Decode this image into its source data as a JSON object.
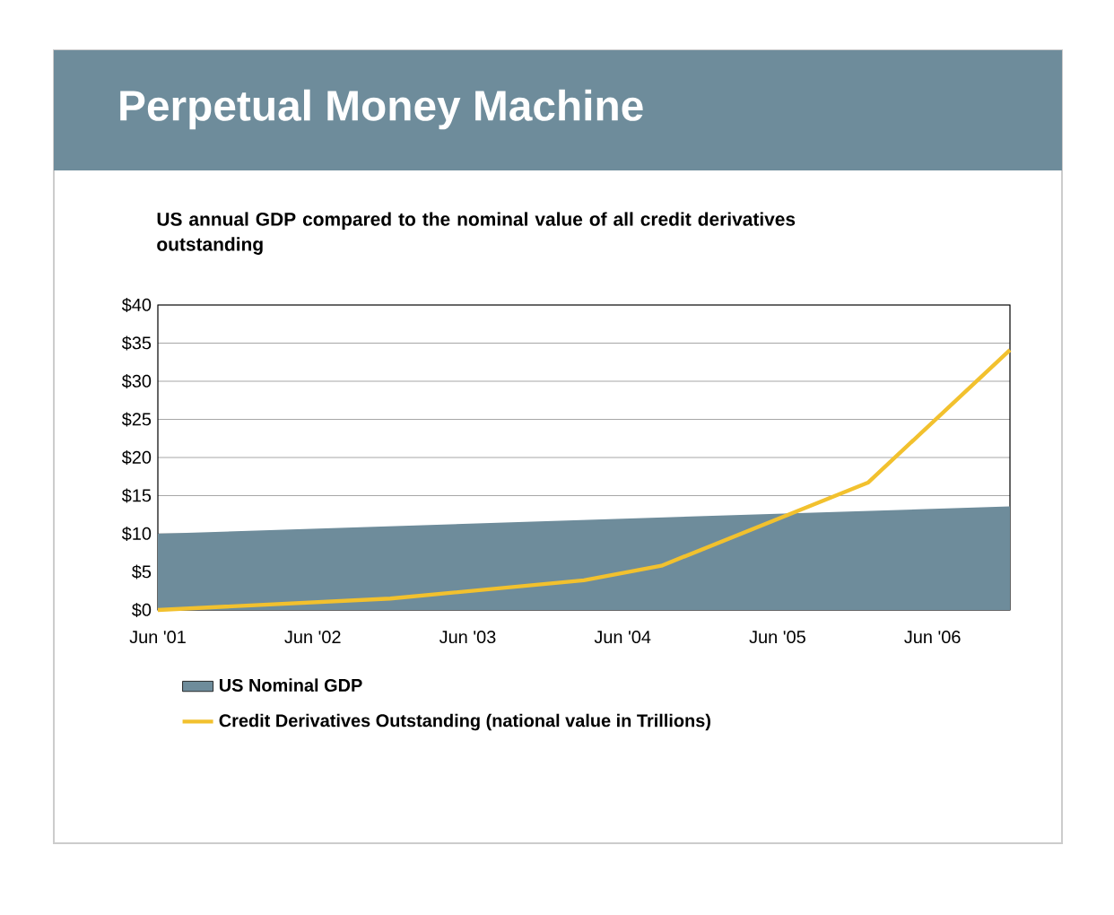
{
  "chart_data": {
    "type": "line",
    "title": "Perpetual Money Machine",
    "subtitle": "US annual GDP compared to the nominal value of all credit derivatives outstanding",
    "x": [
      "2001-06",
      "2006-12"
    ],
    "series": [
      {
        "name": "US Nominal GDP",
        "type": "area",
        "color": "#6e8c9b",
        "values": [
          10,
          13.6
        ]
      },
      {
        "name": "Credit Derivatives Outstanding (national value in Trillions)",
        "color": "#f2c12e",
        "x": [
          "2001-06",
          "2002-12",
          "2004-03",
          "2004-09",
          "2006-01",
          "2006-12"
        ],
        "values": [
          0,
          1.5,
          3.9,
          5.8,
          16.7,
          34.1
        ]
      }
    ],
    "xlim": [
      "2001-06",
      "2006-12"
    ],
    "xticks": [
      {
        "value": "2001-06",
        "label": "Jun '01"
      },
      {
        "value": "2002-06",
        "label": "Jun '02"
      },
      {
        "value": "2003-06",
        "label": "Jun '03"
      },
      {
        "value": "2004-06",
        "label": "Jun '04"
      },
      {
        "value": "2005-06",
        "label": "Jun '05"
      },
      {
        "value": "2006-06",
        "label": "Jun '06"
      }
    ],
    "ylim": [
      0,
      40
    ],
    "yticks": [
      {
        "value": 0,
        "label": "$0"
      },
      {
        "value": 5,
        "label": "$5"
      },
      {
        "value": 10,
        "label": "$10"
      },
      {
        "value": 15,
        "label": "$15"
      },
      {
        "value": 20,
        "label": "$20"
      },
      {
        "value": 25,
        "label": "$25"
      },
      {
        "value": 30,
        "label": "$30"
      },
      {
        "value": 35,
        "label": "$35"
      },
      {
        "value": 40,
        "label": "$40"
      }
    ],
    "grid": "y",
    "legend": "bottom",
    "line_style": "solid",
    "marker": "none"
  }
}
